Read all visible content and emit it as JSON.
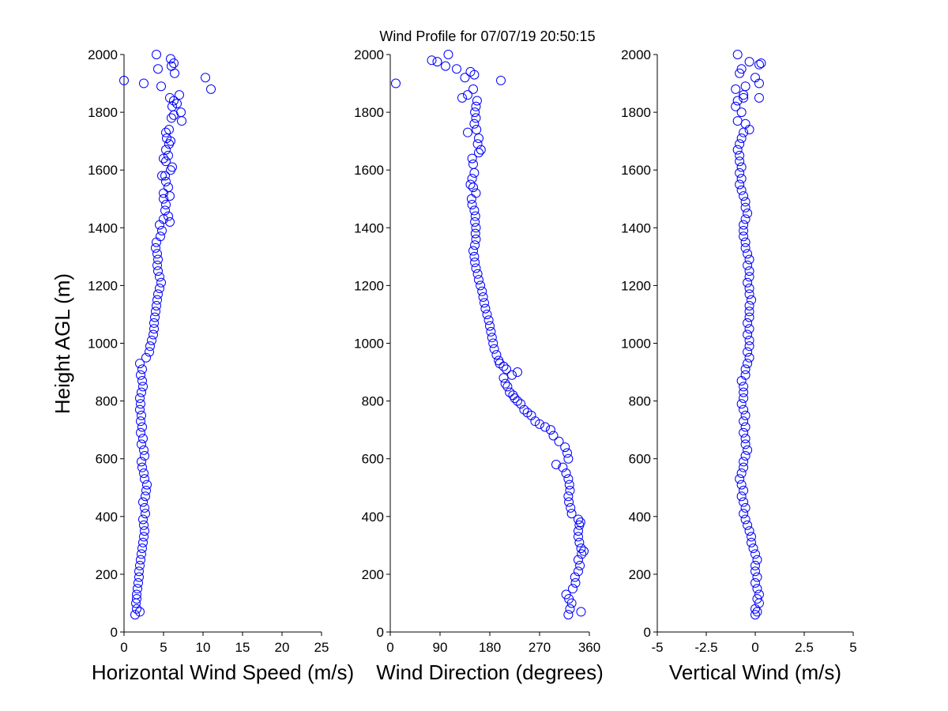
{
  "title": "Wind Profile for  07/07/19 20:50:15",
  "ylabel": "Height AGL (m)",
  "colors": {
    "marker": "#0000ff",
    "axes": "#000000",
    "background": "#ffffff"
  },
  "chart_data": [
    {
      "type": "scatter",
      "xlabel": "Horizontal Wind Speed (m/s)",
      "xlim": [
        0,
        25
      ],
      "ylim": [
        0,
        2000
      ],
      "xticks": [
        0,
        5,
        10,
        15,
        20,
        25
      ],
      "xtick_labels": [
        "0",
        "5",
        "10",
        "15",
        "20",
        "25"
      ],
      "yticks": [
        0,
        200,
        400,
        600,
        800,
        1000,
        1200,
        1400,
        1600,
        1800,
        2000
      ],
      "ytick_labels": [
        "0",
        "200",
        "400",
        "600",
        "800",
        "1000",
        "1200",
        "1400",
        "1600",
        "1800",
        "2000"
      ],
      "marker": "circle",
      "grid": false,
      "points": [
        [
          1.4,
          60
        ],
        [
          2.0,
          70
        ],
        [
          1.6,
          80
        ],
        [
          1.5,
          100
        ],
        [
          1.6,
          115
        ],
        [
          1.6,
          130
        ],
        [
          1.7,
          150
        ],
        [
          1.8,
          170
        ],
        [
          1.9,
          190
        ],
        [
          1.9,
          210
        ],
        [
          2.0,
          230
        ],
        [
          2.1,
          250
        ],
        [
          2.2,
          270
        ],
        [
          2.3,
          290
        ],
        [
          2.4,
          310
        ],
        [
          2.5,
          330
        ],
        [
          2.6,
          350
        ],
        [
          2.5,
          370
        ],
        [
          2.4,
          390
        ],
        [
          2.7,
          410
        ],
        [
          2.6,
          430
        ],
        [
          2.4,
          450
        ],
        [
          2.7,
          470
        ],
        [
          2.8,
          490
        ],
        [
          2.9,
          510
        ],
        [
          2.6,
          530
        ],
        [
          2.5,
          550
        ],
        [
          2.3,
          570
        ],
        [
          2.2,
          590
        ],
        [
          2.6,
          610
        ],
        [
          2.5,
          630
        ],
        [
          2.2,
          650
        ],
        [
          2.4,
          670
        ],
        [
          2.1,
          690
        ],
        [
          2.3,
          710
        ],
        [
          2.1,
          730
        ],
        [
          2.2,
          750
        ],
        [
          2.0,
          770
        ],
        [
          2.1,
          790
        ],
        [
          2.0,
          810
        ],
        [
          2.2,
          830
        ],
        [
          2.4,
          850
        ],
        [
          2.3,
          870
        ],
        [
          2.1,
          890
        ],
        [
          2.3,
          910
        ],
        [
          2.0,
          930
        ],
        [
          2.8,
          950
        ],
        [
          3.2,
          970
        ],
        [
          3.3,
          990
        ],
        [
          3.5,
          1010
        ],
        [
          3.7,
          1030
        ],
        [
          3.8,
          1050
        ],
        [
          3.8,
          1070
        ],
        [
          3.9,
          1090
        ],
        [
          4.0,
          1110
        ],
        [
          4.1,
          1130
        ],
        [
          4.2,
          1150
        ],
        [
          4.3,
          1170
        ],
        [
          4.5,
          1190
        ],
        [
          4.7,
          1210
        ],
        [
          4.5,
          1230
        ],
        [
          4.3,
          1250
        ],
        [
          4.2,
          1270
        ],
        [
          4.3,
          1290
        ],
        [
          4.2,
          1310
        ],
        [
          4.0,
          1330
        ],
        [
          4.1,
          1350
        ],
        [
          4.6,
          1370
        ],
        [
          4.8,
          1390
        ],
        [
          4.5,
          1410
        ],
        [
          5.8,
          1420
        ],
        [
          5.0,
          1430
        ],
        [
          5.6,
          1440
        ],
        [
          5.2,
          1460
        ],
        [
          5.3,
          1480
        ],
        [
          5.0,
          1500
        ],
        [
          5.8,
          1510
        ],
        [
          5.0,
          1520
        ],
        [
          5.6,
          1540
        ],
        [
          5.3,
          1560
        ],
        [
          4.8,
          1580
        ],
        [
          5.2,
          1580
        ],
        [
          5.9,
          1600
        ],
        [
          6.1,
          1610
        ],
        [
          5.3,
          1630
        ],
        [
          5.0,
          1640
        ],
        [
          5.6,
          1650
        ],
        [
          5.3,
          1670
        ],
        [
          5.7,
          1690
        ],
        [
          5.9,
          1700
        ],
        [
          5.4,
          1710
        ],
        [
          5.3,
          1730
        ],
        [
          5.7,
          1740
        ],
        [
          7.3,
          1770
        ],
        [
          6.0,
          1780
        ],
        [
          6.3,
          1790
        ],
        [
          7.2,
          1800
        ],
        [
          6.1,
          1820
        ],
        [
          6.7,
          1830
        ],
        [
          6.3,
          1840
        ],
        [
          5.8,
          1850
        ],
        [
          7.0,
          1860
        ],
        [
          11.0,
          1880
        ],
        [
          4.7,
          1890
        ],
        [
          2.5,
          1900
        ],
        [
          0.0,
          1910
        ],
        [
          10.3,
          1920
        ],
        [
          6.4,
          1935
        ],
        [
          4.3,
          1950
        ],
        [
          6.0,
          1960
        ],
        [
          6.3,
          1970
        ],
        [
          5.9,
          1985
        ],
        [
          4.1,
          2000
        ]
      ]
    },
    {
      "type": "scatter",
      "xlabel": "Wind Direction (degrees)",
      "xlim": [
        0,
        360
      ],
      "ylim": [
        0,
        2000
      ],
      "xticks": [
        0,
        90,
        180,
        270,
        360
      ],
      "xtick_labels": [
        "0",
        "90",
        "180",
        "270",
        "360"
      ],
      "yticks": [
        0,
        200,
        400,
        600,
        800,
        1000,
        1200,
        1400,
        1600,
        1800,
        2000
      ],
      "ytick_labels": [
        "0",
        "200",
        "400",
        "600",
        "800",
        "1000",
        "1200",
        "1400",
        "1600",
        "1800",
        "2000"
      ],
      "marker": "circle",
      "grid": false,
      "points": [
        [
          322,
          60
        ],
        [
          345,
          70
        ],
        [
          325,
          80
        ],
        [
          328,
          100
        ],
        [
          323,
          115
        ],
        [
          318,
          130
        ],
        [
          330,
          150
        ],
        [
          335,
          170
        ],
        [
          334,
          190
        ],
        [
          340,
          210
        ],
        [
          343,
          230
        ],
        [
          340,
          250
        ],
        [
          346,
          270
        ],
        [
          350,
          280
        ],
        [
          345,
          290
        ],
        [
          342,
          310
        ],
        [
          340,
          330
        ],
        [
          340,
          350
        ],
        [
          342,
          370
        ],
        [
          344,
          380
        ],
        [
          340,
          390
        ],
        [
          328,
          410
        ],
        [
          326,
          430
        ],
        [
          323,
          450
        ],
        [
          322,
          470
        ],
        [
          325,
          490
        ],
        [
          324,
          510
        ],
        [
          322,
          530
        ],
        [
          318,
          550
        ],
        [
          312,
          570
        ],
        [
          300,
          580
        ],
        [
          322,
          600
        ],
        [
          320,
          620
        ],
        [
          316,
          640
        ],
        [
          305,
          660
        ],
        [
          295,
          680
        ],
        [
          290,
          700
        ],
        [
          280,
          710
        ],
        [
          270,
          720
        ],
        [
          262,
          730
        ],
        [
          255,
          750
        ],
        [
          248,
          760
        ],
        [
          242,
          770
        ],
        [
          236,
          790
        ],
        [
          230,
          800
        ],
        [
          225,
          810
        ],
        [
          222,
          820
        ],
        [
          216,
          830
        ],
        [
          212,
          850
        ],
        [
          208,
          860
        ],
        [
          205,
          880
        ],
        [
          220,
          890
        ],
        [
          230,
          900
        ],
        [
          210,
          910
        ],
        [
          205,
          920
        ],
        [
          198,
          930
        ],
        [
          196,
          940
        ],
        [
          192,
          960
        ],
        [
          188,
          980
        ],
        [
          186,
          1000
        ],
        [
          184,
          1020
        ],
        [
          182,
          1040
        ],
        [
          180,
          1060
        ],
        [
          178,
          1080
        ],
        [
          175,
          1100
        ],
        [
          172,
          1120
        ],
        [
          170,
          1140
        ],
        [
          168,
          1160
        ],
        [
          166,
          1180
        ],
        [
          163,
          1200
        ],
        [
          160,
          1220
        ],
        [
          158,
          1240
        ],
        [
          155,
          1260
        ],
        [
          153,
          1280
        ],
        [
          152,
          1300
        ],
        [
          150,
          1320
        ],
        [
          153,
          1340
        ],
        [
          155,
          1360
        ],
        [
          154,
          1380
        ],
        [
          155,
          1400
        ],
        [
          153,
          1420
        ],
        [
          154,
          1440
        ],
        [
          152,
          1460
        ],
        [
          148,
          1480
        ],
        [
          147,
          1500
        ],
        [
          155,
          1520
        ],
        [
          150,
          1540
        ],
        [
          145,
          1550
        ],
        [
          148,
          1570
        ],
        [
          152,
          1590
        ],
        [
          150,
          1620
        ],
        [
          148,
          1640
        ],
        [
          160,
          1660
        ],
        [
          164,
          1670
        ],
        [
          158,
          1690
        ],
        [
          160,
          1710
        ],
        [
          140,
          1730
        ],
        [
          156,
          1740
        ],
        [
          152,
          1760
        ],
        [
          155,
          1780
        ],
        [
          153,
          1800
        ],
        [
          155,
          1820
        ],
        [
          157,
          1840
        ],
        [
          130,
          1850
        ],
        [
          140,
          1860
        ],
        [
          150,
          1880
        ],
        [
          10,
          1900
        ],
        [
          200,
          1910
        ],
        [
          135,
          1920
        ],
        [
          152,
          1930
        ],
        [
          145,
          1940
        ],
        [
          120,
          1950
        ],
        [
          100,
          1960
        ],
        [
          85,
          1975
        ],
        [
          75,
          1980
        ],
        [
          105,
          2000
        ]
      ]
    },
    {
      "type": "scatter",
      "xlabel": "Vertical Wind (m/s)",
      "xlim": [
        -5,
        5
      ],
      "ylim": [
        0,
        2000
      ],
      "xticks": [
        -5,
        -2.5,
        0,
        2.5,
        5
      ],
      "xtick_labels": [
        "-5",
        "-2.5",
        "0",
        "2.5",
        "5"
      ],
      "yticks": [
        0,
        200,
        400,
        600,
        800,
        1000,
        1200,
        1400,
        1600,
        1800,
        2000
      ],
      "ytick_labels": [
        "0",
        "200",
        "400",
        "600",
        "800",
        "1000",
        "1200",
        "1400",
        "1600",
        "1800",
        "2000"
      ],
      "marker": "circle",
      "grid": false,
      "points": [
        [
          0.0,
          60
        ],
        [
          0.1,
          70
        ],
        [
          0.0,
          80
        ],
        [
          0.2,
          100
        ],
        [
          0.1,
          115
        ],
        [
          0.2,
          130
        ],
        [
          0.1,
          150
        ],
        [
          0.0,
          170
        ],
        [
          0.1,
          190
        ],
        [
          0.0,
          210
        ],
        [
          0.0,
          230
        ],
        [
          0.1,
          250
        ],
        [
          0.0,
          270
        ],
        [
          -0.1,
          290
        ],
        [
          -0.2,
          310
        ],
        [
          -0.2,
          330
        ],
        [
          -0.3,
          350
        ],
        [
          -0.4,
          370
        ],
        [
          -0.5,
          390
        ],
        [
          -0.6,
          410
        ],
        [
          -0.5,
          430
        ],
        [
          -0.6,
          450
        ],
        [
          -0.7,
          470
        ],
        [
          -0.6,
          490
        ],
        [
          -0.7,
          510
        ],
        [
          -0.8,
          530
        ],
        [
          -0.7,
          550
        ],
        [
          -0.6,
          570
        ],
        [
          -0.6,
          590
        ],
        [
          -0.5,
          610
        ],
        [
          -0.4,
          630
        ],
        [
          -0.5,
          650
        ],
        [
          -0.5,
          670
        ],
        [
          -0.6,
          690
        ],
        [
          -0.5,
          710
        ],
        [
          -0.6,
          730
        ],
        [
          -0.5,
          750
        ],
        [
          -0.6,
          770
        ],
        [
          -0.7,
          790
        ],
        [
          -0.6,
          810
        ],
        [
          -0.6,
          830
        ],
        [
          -0.6,
          850
        ],
        [
          -0.7,
          870
        ],
        [
          -0.5,
          890
        ],
        [
          -0.5,
          910
        ],
        [
          -0.4,
          930
        ],
        [
          -0.3,
          950
        ],
        [
          -0.4,
          970
        ],
        [
          -0.3,
          990
        ],
        [
          -0.3,
          1010
        ],
        [
          -0.4,
          1030
        ],
        [
          -0.3,
          1050
        ],
        [
          -0.4,
          1070
        ],
        [
          -0.3,
          1090
        ],
        [
          -0.3,
          1110
        ],
        [
          -0.3,
          1130
        ],
        [
          -0.2,
          1150
        ],
        [
          -0.3,
          1170
        ],
        [
          -0.3,
          1190
        ],
        [
          -0.4,
          1210
        ],
        [
          -0.3,
          1230
        ],
        [
          -0.3,
          1250
        ],
        [
          -0.4,
          1270
        ],
        [
          -0.3,
          1290
        ],
        [
          -0.4,
          1310
        ],
        [
          -0.5,
          1330
        ],
        [
          -0.5,
          1350
        ],
        [
          -0.6,
          1370
        ],
        [
          -0.6,
          1390
        ],
        [
          -0.6,
          1410
        ],
        [
          -0.5,
          1430
        ],
        [
          -0.4,
          1450
        ],
        [
          -0.5,
          1470
        ],
        [
          -0.5,
          1490
        ],
        [
          -0.6,
          1510
        ],
        [
          -0.7,
          1530
        ],
        [
          -0.8,
          1550
        ],
        [
          -0.7,
          1570
        ],
        [
          -0.8,
          1590
        ],
        [
          -0.7,
          1610
        ],
        [
          -0.8,
          1630
        ],
        [
          -0.8,
          1650
        ],
        [
          -0.9,
          1670
        ],
        [
          -0.8,
          1690
        ],
        [
          -0.7,
          1710
        ],
        [
          -0.6,
          1730
        ],
        [
          -0.3,
          1740
        ],
        [
          -0.5,
          1760
        ],
        [
          -0.9,
          1770
        ],
        [
          -0.7,
          1800
        ],
        [
          -1.0,
          1820
        ],
        [
          -0.9,
          1840
        ],
        [
          -0.6,
          1850
        ],
        [
          0.2,
          1850
        ],
        [
          -0.6,
          1860
        ],
        [
          -1.0,
          1880
        ],
        [
          -0.5,
          1890
        ],
        [
          0.2,
          1900
        ],
        [
          0.0,
          1920
        ],
        [
          -0.8,
          1935
        ],
        [
          -0.7,
          1950
        ],
        [
          0.2,
          1965
        ],
        [
          -0.3,
          1975
        ],
        [
          0.3,
          1970
        ],
        [
          -0.9,
          2000
        ]
      ]
    }
  ]
}
